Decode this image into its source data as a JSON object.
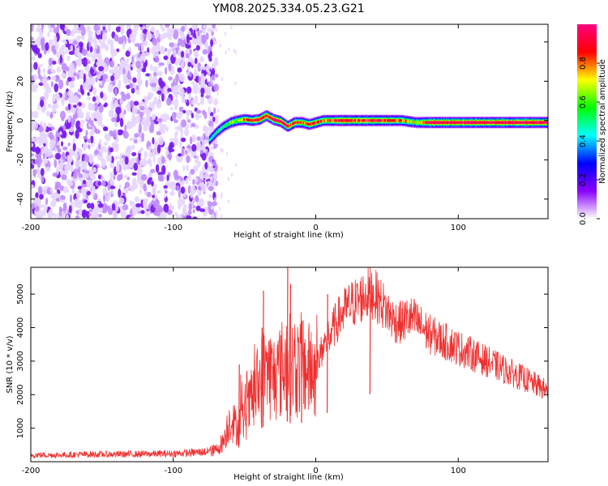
{
  "title": "YM08.2025.334.05.23.G21",
  "chart_data": [
    {
      "type": "heatmap",
      "xlabel": "Height of straight line (km)",
      "ylabel": "Frequency (Hz)",
      "xlim": [
        -200,
        163
      ],
      "ylim": [
        -50,
        49
      ],
      "xticks": [
        -200,
        -100,
        0,
        100
      ],
      "yticks": [
        -40,
        -20,
        0,
        20,
        40
      ],
      "colorbar": {
        "label": "Normalized spectral amplitude",
        "range": [
          0,
          1
        ],
        "ticks": [
          0.0,
          0.2,
          0.4,
          0.6,
          0.8
        ],
        "colors": [
          "#ffffff",
          "#8a00ff",
          "#0000ff",
          "#00ffff",
          "#00ff00",
          "#ffff00",
          "#ff0000",
          "#ff0080"
        ]
      },
      "noise_region_x": [
        -200,
        -73
      ],
      "ridge": {
        "x": [
          -75,
          -70,
          -65,
          -60,
          -55,
          -50,
          -45,
          -40,
          -35,
          -30,
          -25,
          -20,
          -15,
          -10,
          -5,
          0,
          5,
          10,
          20,
          30,
          40,
          50,
          60,
          70,
          80,
          90,
          100,
          110,
          120,
          130,
          140,
          150,
          163
        ],
        "freq": [
          -10,
          -6,
          -3,
          -1,
          0,
          0.5,
          0,
          0.5,
          2.5,
          0.5,
          -0.5,
          -3,
          -1,
          -1,
          -2,
          -1,
          0,
          0,
          0,
          0,
          0,
          0,
          0,
          -1,
          -1,
          -1,
          -1,
          -1,
          -1,
          -1,
          -1,
          -1,
          -1
        ],
        "amp": [
          0.45,
          0.5,
          0.55,
          0.6,
          0.7,
          0.8,
          0.85,
          0.95,
          0.9,
          0.95,
          0.95,
          0.9,
          0.85,
          0.8,
          0.85,
          0.85,
          0.8,
          0.8,
          0.95,
          0.85,
          0.9,
          0.85,
          0.8,
          0.7,
          0.95,
          0.95,
          0.95,
          0.95,
          0.95,
          0.95,
          0.95,
          0.95,
          0.95
        ]
      }
    },
    {
      "type": "line",
      "xlabel": "Height of straight line (km)",
      "ylabel": "SNR (10 * v/v)",
      "xlim": [
        -200,
        163
      ],
      "ylim": [
        0,
        5800
      ],
      "xticks": [
        -200,
        -100,
        0,
        100
      ],
      "yticks": [
        1000,
        2000,
        3000,
        4000,
        5000
      ],
      "color": "#ef3030",
      "series": [
        {
          "name": "SNR",
          "x": [
            -200,
            -180,
            -160,
            -140,
            -120,
            -100,
            -90,
            -80,
            -75,
            -70,
            -65,
            -60,
            -55,
            -50,
            -45,
            -40,
            -35,
            -30,
            -25,
            -20,
            -15,
            -10,
            -5,
            0,
            5,
            10,
            15,
            20,
            25,
            30,
            35,
            40,
            45,
            50,
            55,
            60,
            65,
            70,
            75,
            80,
            85,
            90,
            95,
            100,
            110,
            120,
            130,
            140,
            150,
            163
          ],
          "y": [
            200,
            200,
            220,
            220,
            230,
            240,
            260,
            290,
            300,
            350,
            600,
            1300,
            1000,
            1300,
            1800,
            2300,
            2800,
            2500,
            2700,
            3000,
            2700,
            2900,
            2700,
            2800,
            3400,
            3800,
            4200,
            4500,
            4700,
            4800,
            5000,
            5050,
            4800,
            4500,
            4200,
            4150,
            4300,
            4200,
            4000,
            3800,
            3700,
            3600,
            3500,
            3400,
            3200,
            3000,
            2800,
            2600,
            2400,
            2100
          ],
          "spikes": [
            {
              "x": -54,
              "y": 2900
            },
            {
              "x": -38,
              "y": 4000
            },
            {
              "x": -37,
              "y": 5100
            },
            {
              "x": -20,
              "y": 5800
            },
            {
              "x": -18,
              "y": 5300
            },
            {
              "x": -10,
              "y": 4200
            },
            {
              "x": 8,
              "y": 5000
            },
            {
              "x": 38,
              "y": 5400
            }
          ]
        }
      ]
    }
  ]
}
